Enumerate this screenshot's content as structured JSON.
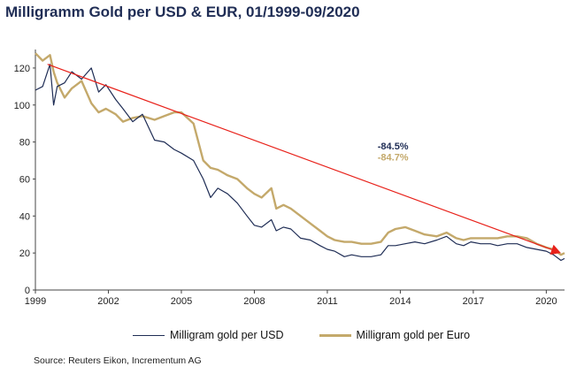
{
  "title": "Milligramm Gold per USD & EUR, 01/1999-09/2020",
  "source": "Source: Reuters Eikon, Incrementum AG",
  "colors": {
    "usd": "#1f2d55",
    "eur": "#c4a96b",
    "trend": "#e8211a",
    "usd_label": "#1f2d55",
    "eur_label": "#c4a96b"
  },
  "chart_data": {
    "type": "line",
    "title": "Milligramm Gold per USD & EUR, 01/1999-09/2020",
    "xlabel": "",
    "ylabel": "",
    "xlim": [
      1999,
      2020.75
    ],
    "ylim": [
      0,
      130
    ],
    "x_ticks": [
      1999,
      2002,
      2005,
      2008,
      2011,
      2014,
      2017,
      2020
    ],
    "y_ticks": [
      0,
      20,
      40,
      60,
      80,
      100,
      120
    ],
    "grid": false,
    "legend": "bottom",
    "series": [
      {
        "name": "Milligram gold per USD",
        "x": [
          1999.0,
          1999.3,
          1999.6,
          1999.75,
          1999.9,
          2000.2,
          2000.5,
          2000.9,
          2001.3,
          2001.6,
          2001.9,
          2002.3,
          2002.6,
          2003.0,
          2003.4,
          2003.9,
          2004.3,
          2004.7,
          2005.0,
          2005.5,
          2005.9,
          2006.2,
          2006.5,
          2006.9,
          2007.3,
          2007.7,
          2008.0,
          2008.3,
          2008.7,
          2008.9,
          2009.2,
          2009.5,
          2009.9,
          2010.3,
          2010.7,
          2011.0,
          2011.3,
          2011.7,
          2012.0,
          2012.4,
          2012.8,
          2013.2,
          2013.5,
          2013.8,
          2014.2,
          2014.6,
          2015.0,
          2015.5,
          2015.9,
          2016.3,
          2016.6,
          2016.9,
          2017.3,
          2017.7,
          2018.0,
          2018.4,
          2018.8,
          2019.2,
          2019.6,
          2020.0,
          2020.3,
          2020.6,
          2020.75
        ],
        "values": [
          108,
          110,
          122,
          100,
          110,
          112,
          118,
          114,
          120,
          107,
          111,
          103,
          98,
          91,
          95,
          81,
          80,
          76,
          74,
          70,
          60,
          50,
          55,
          52,
          47,
          40,
          35,
          34,
          38,
          32,
          34,
          33,
          28,
          27,
          24,
          22,
          21,
          18,
          19,
          18,
          18,
          19,
          24,
          24,
          25,
          26,
          25,
          27,
          29,
          25,
          24,
          26,
          25,
          25,
          24,
          25,
          25,
          23,
          22,
          21,
          19,
          16,
          17
        ]
      },
      {
        "name": "Milligram gold per Euro",
        "x": [
          1999.0,
          1999.3,
          1999.6,
          1999.75,
          1999.9,
          2000.2,
          2000.5,
          2000.9,
          2001.3,
          2001.6,
          2001.9,
          2002.3,
          2002.6,
          2003.0,
          2003.4,
          2003.9,
          2004.3,
          2004.7,
          2005.0,
          2005.5,
          2005.9,
          2006.2,
          2006.5,
          2006.9,
          2007.3,
          2007.7,
          2008.0,
          2008.3,
          2008.7,
          2008.9,
          2009.2,
          2009.5,
          2009.9,
          2010.3,
          2010.7,
          2011.0,
          2011.3,
          2011.7,
          2012.0,
          2012.4,
          2012.8,
          2013.2,
          2013.5,
          2013.8,
          2014.2,
          2014.6,
          2015.0,
          2015.5,
          2015.9,
          2016.3,
          2016.6,
          2016.9,
          2017.3,
          2017.7,
          2018.0,
          2018.4,
          2018.8,
          2019.2,
          2019.6,
          2020.0,
          2020.3,
          2020.6,
          2020.75
        ],
        "values": [
          128,
          124,
          127,
          118,
          112,
          104,
          109,
          113,
          101,
          96,
          98,
          95,
          91,
          93,
          94,
          92,
          94,
          96,
          96,
          90,
          70,
          66,
          65,
          62,
          60,
          55,
          52,
          50,
          55,
          44,
          46,
          44,
          40,
          36,
          32,
          29,
          27,
          26,
          26,
          25,
          25,
          26,
          31,
          33,
          34,
          32,
          30,
          29,
          31,
          28,
          27,
          28,
          28,
          28,
          28,
          29,
          29,
          28,
          25,
          23,
          22,
          19,
          20
        ]
      }
    ],
    "trend_line": {
      "from": [
        1999.5,
        122
      ],
      "to": [
        2020.6,
        20
      ]
    },
    "annotations": [
      {
        "text": "-84.5%",
        "series": "Milligram gold per USD",
        "x": 2013.7,
        "y": 76
      },
      {
        "text": "-84.7%",
        "series": "Milligram gold per Euro",
        "x": 2013.7,
        "y": 70
      }
    ]
  }
}
